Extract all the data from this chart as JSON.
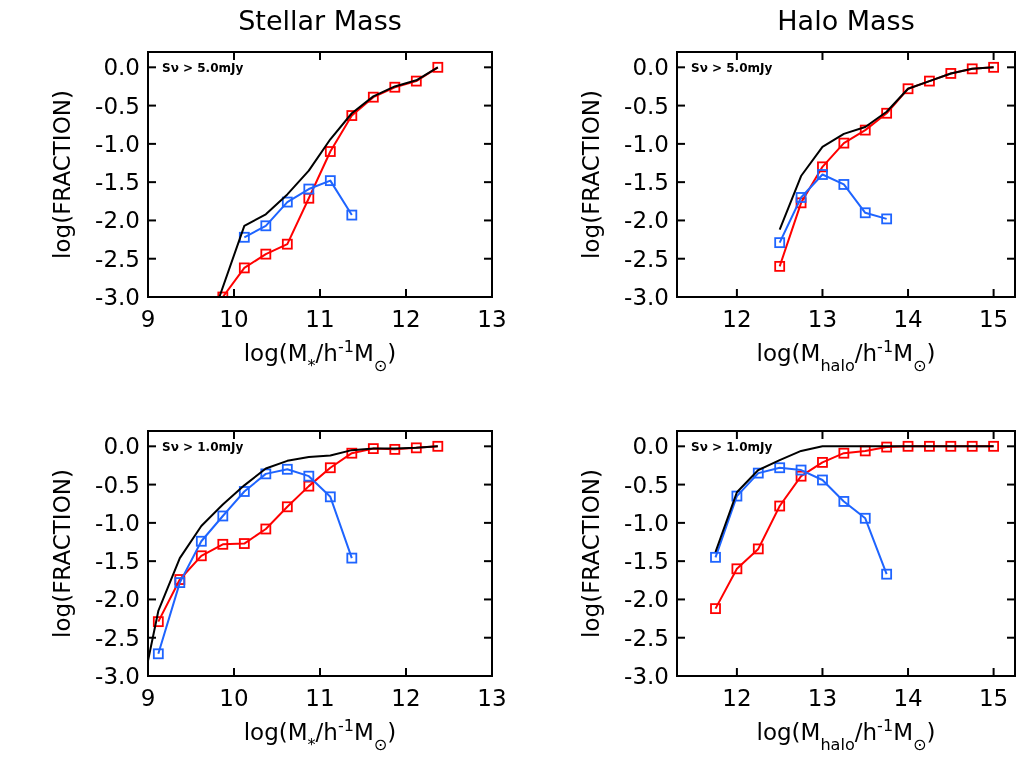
{
  "chart_data": [
    {
      "type": "line",
      "title": "Stellar Mass",
      "xlabel": "log(M$_{*}$/h$^{-1}$M$_{⊙}$)",
      "ylabel": "log(FRACTION)",
      "annotations": [
        "Sν > 5.0mJy"
      ],
      "xlim": [
        9,
        13
      ],
      "xticks": [
        9,
        10,
        11,
        12,
        13
      ],
      "ylim": [
        -3.0,
        0.2
      ],
      "yticks": [
        {
          "value": 0,
          "label": "0.0"
        },
        {
          "value": -0.5,
          "label": "-0.5"
        },
        {
          "value": -1,
          "label": "-1.0"
        },
        {
          "value": -1.5,
          "label": "-1.5"
        },
        {
          "value": -2,
          "label": "-2.0"
        },
        {
          "value": -2.5,
          "label": "-2.5"
        },
        {
          "value": -3,
          "label": "-3.0"
        }
      ],
      "grid": false,
      "series": [
        {
          "color": "#000000",
          "marker": "none",
          "x": [
            9.83,
            10.12,
            10.37,
            10.62,
            10.87,
            11.12,
            11.37,
            11.62,
            11.87,
            12.12,
            12.37
          ],
          "values": [
            -3.0,
            -2.07,
            -1.92,
            -1.66,
            -1.35,
            -0.94,
            -0.6,
            -0.38,
            -0.25,
            -0.17,
            0
          ]
        },
        {
          "color": "#ff0000",
          "marker": "square",
          "x": [
            9.87,
            10.12,
            10.37,
            10.62,
            10.87,
            11.12,
            11.37,
            11.62,
            11.87,
            12.12,
            12.37
          ],
          "values": [
            -3.0,
            -2.62,
            -2.44,
            -2.31,
            -1.71,
            -1.1,
            -0.63,
            -0.39,
            -0.26,
            -0.18,
            0
          ]
        },
        {
          "color": "#1e64ff",
          "marker": "square",
          "x": [
            10.12,
            10.37,
            10.62,
            10.87,
            11.12,
            11.37
          ],
          "values": [
            -2.22,
            -2.07,
            -1.76,
            -1.59,
            -1.48,
            -1.93
          ]
        }
      ]
    },
    {
      "type": "line",
      "title": "Halo Mass",
      "xlabel": "log(M$_{halo}$/h$^{-1}$M$_{⊙}$)",
      "ylabel": "log(FRACTION)",
      "annotations": [
        "Sν > 5.0mJy"
      ],
      "xlim": [
        11.3,
        15.25
      ],
      "xticks": [
        12,
        13,
        14,
        15
      ],
      "ylim": [
        -3.0,
        0.2
      ],
      "yticks": [
        {
          "value": 0,
          "label": "0.0"
        },
        {
          "value": -0.5,
          "label": "-0.5"
        },
        {
          "value": -1,
          "label": "-1.0"
        },
        {
          "value": -1.5,
          "label": "-1.5"
        },
        {
          "value": -2,
          "label": "-2.0"
        },
        {
          "value": -2.5,
          "label": "-2.5"
        },
        {
          "value": -3,
          "label": "-3.0"
        }
      ],
      "grid": false,
      "series": [
        {
          "color": "#000000",
          "marker": "none",
          "x": [
            12.5,
            12.75,
            13,
            13.25,
            13.5,
            13.75,
            14,
            14.25,
            14.5,
            14.75,
            15
          ],
          "values": [
            -2.12,
            -1.42,
            -1.04,
            -0.87,
            -0.78,
            -0.58,
            -0.28,
            -0.18,
            -0.08,
            -0.02,
            0
          ]
        },
        {
          "color": "#ff0000",
          "marker": "square",
          "x": [
            12.5,
            12.75,
            13,
            13.25,
            13.5,
            13.75,
            14,
            14.25,
            14.5,
            14.75,
            15
          ],
          "values": [
            -2.6,
            -1.77,
            -1.3,
            -0.99,
            -0.82,
            -0.6,
            -0.28,
            -0.18,
            -0.08,
            -0.02,
            0
          ]
        },
        {
          "color": "#1e64ff",
          "marker": "square",
          "x": [
            12.5,
            12.75,
            13,
            13.25,
            13.5,
            13.75
          ],
          "values": [
            -2.29,
            -1.7,
            -1.4,
            -1.53,
            -1.9,
            -1.98
          ]
        }
      ]
    },
    {
      "type": "line",
      "xlabel": "log(M$_{*}$/h$^{-1}$M$_{⊙}$)",
      "ylabel": "log(FRACTION)",
      "annotations": [
        "Sν > 1.0mJy"
      ],
      "xlim": [
        9,
        13
      ],
      "xticks": [
        9,
        10,
        11,
        12,
        13
      ],
      "ylim": [
        -3.0,
        0.2
      ],
      "yticks": [
        {
          "value": 0,
          "label": "0.0"
        },
        {
          "value": -0.5,
          "label": "-0.5"
        },
        {
          "value": -1,
          "label": "-1.0"
        },
        {
          "value": -1.5,
          "label": "-1.5"
        },
        {
          "value": -2,
          "label": "-2.0"
        },
        {
          "value": -2.5,
          "label": "-2.5"
        },
        {
          "value": -3,
          "label": "-3.0"
        }
      ],
      "grid": false,
      "series": [
        {
          "color": "#000000",
          "marker": "none",
          "x": [
            9.0,
            9.12,
            9.37,
            9.62,
            9.87,
            10.12,
            10.37,
            10.62,
            10.87,
            11.12,
            11.37,
            11.62,
            11.87,
            12.12,
            12.37
          ],
          "values": [
            -2.8,
            -2.15,
            -1.46,
            -1.04,
            -0.76,
            -0.51,
            -0.29,
            -0.19,
            -0.14,
            -0.12,
            -0.05,
            -0.03,
            -0.03,
            -0.02,
            0
          ]
        },
        {
          "color": "#ff0000",
          "marker": "square",
          "x": [
            9.12,
            9.37,
            9.62,
            9.87,
            10.12,
            10.37,
            10.62,
            10.87,
            11.12,
            11.37,
            11.62,
            11.87,
            12.12,
            12.37
          ],
          "values": [
            -2.29,
            -1.74,
            -1.43,
            -1.28,
            -1.27,
            -1.08,
            -0.79,
            -0.52,
            -0.28,
            -0.09,
            -0.03,
            -0.04,
            -0.02,
            0
          ]
        },
        {
          "color": "#1e64ff",
          "marker": "square",
          "x": [
            9.12,
            9.37,
            9.62,
            9.87,
            10.12,
            10.37,
            10.62,
            10.87,
            11.12,
            11.37
          ],
          "values": [
            -2.71,
            -1.78,
            -1.24,
            -0.91,
            -0.59,
            -0.36,
            -0.3,
            -0.39,
            -0.66,
            -1.46
          ]
        }
      ]
    },
    {
      "type": "line",
      "xlabel": "log(M$_{halo}$/h$^{-1}$M$_{⊙}$)",
      "ylabel": "log(FRACTION)",
      "annotations": [
        "Sν > 1.0mJy"
      ],
      "xlim": [
        11.3,
        15.25
      ],
      "xticks": [
        12,
        13,
        14,
        15
      ],
      "ylim": [
        -3.0,
        0.2
      ],
      "yticks": [
        {
          "value": 0,
          "label": "0.0"
        },
        {
          "value": -0.5,
          "label": "-0.5"
        },
        {
          "value": -1,
          "label": "-1.0"
        },
        {
          "value": -1.5,
          "label": "-1.5"
        },
        {
          "value": -2,
          "label": "-2.0"
        },
        {
          "value": -2.5,
          "label": "-2.5"
        },
        {
          "value": -3,
          "label": "-3.0"
        }
      ],
      "grid": false,
      "series": [
        {
          "color": "#000000",
          "marker": "none",
          "x": [
            11.75,
            12,
            12.25,
            12.5,
            12.75,
            13,
            13.25,
            13.5,
            13.75,
            14,
            14.25,
            14.5,
            14.75,
            15
          ],
          "values": [
            -1.38,
            -0.6,
            -0.31,
            -0.18,
            -0.06,
            0,
            0,
            0,
            0,
            0,
            0,
            0,
            0,
            0
          ]
        },
        {
          "color": "#ff0000",
          "marker": "square",
          "x": [
            11.75,
            12,
            12.25,
            12.5,
            12.75,
            13,
            13.25,
            13.5,
            13.75,
            14,
            14.25,
            14.5,
            14.75,
            15
          ],
          "values": [
            -2.12,
            -1.6,
            -1.34,
            -0.78,
            -0.39,
            -0.21,
            -0.09,
            -0.06,
            -0.01,
            0,
            0,
            0,
            0,
            0
          ]
        },
        {
          "color": "#1e64ff",
          "marker": "square",
          "x": [
            11.75,
            12,
            12.25,
            12.5,
            12.75,
            13,
            13.25,
            13.5,
            13.75
          ],
          "values": [
            -1.45,
            -0.65,
            -0.35,
            -0.28,
            -0.31,
            -0.44,
            -0.72,
            -0.94,
            -1.67
          ]
        }
      ]
    }
  ]
}
